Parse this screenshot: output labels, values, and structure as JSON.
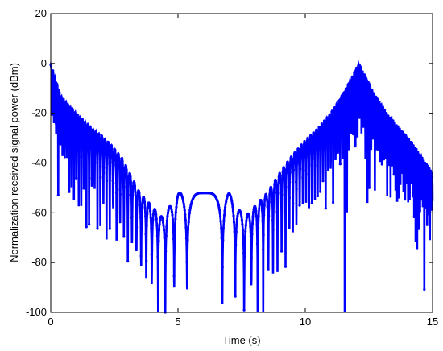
{
  "chart_data": {
    "type": "scatter",
    "title": "",
    "xlabel": "Time (s)",
    "ylabel": "Normalization received signal power (dBm)",
    "xlim": [
      0,
      15
    ],
    "ylim": [
      -100,
      20
    ],
    "x_ticks": [
      0,
      5,
      10,
      15
    ],
    "y_ticks": [
      20,
      0,
      -20,
      -40,
      -60,
      -80,
      -100
    ],
    "grid": false,
    "legend": "none",
    "series": [
      {
        "marker": "dot",
        "color": "#0000ff",
        "envelope": [
          {
            "x": 0.0,
            "y": 0
          },
          {
            "x": 0.4,
            "y": -13
          },
          {
            "x": 0.8,
            "y": -18
          },
          {
            "x": 1.2,
            "y": -22
          },
          {
            "x": 1.6,
            "y": -26
          },
          {
            "x": 2.0,
            "y": -29
          },
          {
            "x": 2.4,
            "y": -33
          },
          {
            "x": 2.8,
            "y": -38
          },
          {
            "x": 3.1,
            "y": -44
          },
          {
            "x": 3.5,
            "y": -52
          },
          {
            "x": 4.4,
            "y": -62
          },
          {
            "x": 5.0,
            "y": -52
          },
          {
            "x": 5.7,
            "y": -52
          },
          {
            "x": 6.5,
            "y": -52
          },
          {
            "x": 7.0,
            "y": -52
          },
          {
            "x": 7.6,
            "y": -62
          },
          {
            "x": 8.5,
            "y": -52
          },
          {
            "x": 9.0,
            "y": -44
          },
          {
            "x": 9.4,
            "y": -38
          },
          {
            "x": 9.9,
            "y": -32
          },
          {
            "x": 10.5,
            "y": -26
          },
          {
            "x": 11.0,
            "y": -20
          },
          {
            "x": 11.5,
            "y": -12
          },
          {
            "x": 12.1,
            "y": 0
          },
          {
            "x": 12.7,
            "y": -12
          },
          {
            "x": 13.2,
            "y": -20
          },
          {
            "x": 13.7,
            "y": -26
          },
          {
            "x": 14.2,
            "y": -32
          },
          {
            "x": 14.6,
            "y": -38
          },
          {
            "x": 15.0,
            "y": -44
          }
        ]
      }
    ]
  }
}
